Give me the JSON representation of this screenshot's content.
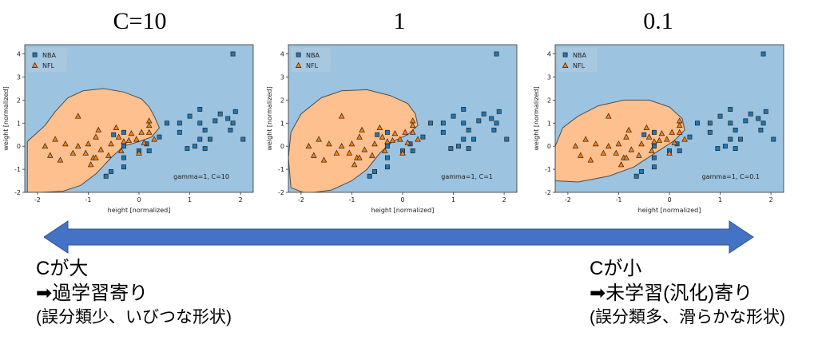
{
  "chart_data": [
    {
      "type": "scatter",
      "title": "C=10",
      "xlabel": "height [normalized]",
      "ylabel": "weight [normalized]",
      "xlim": [
        -2.25,
        2.25
      ],
      "ylim": [
        -2,
        4.4
      ],
      "xticks": [
        -2,
        -1,
        0,
        1,
        2
      ],
      "yticks": [
        -2,
        -1,
        0,
        1,
        2,
        3,
        4
      ],
      "annotation": "gamma=1, C=10",
      "legend": "top-left",
      "region_colors": {
        "NBA": "#9cc3df",
        "NFL": "#fdc08e"
      },
      "nfl_region": [
        [
          -2.2,
          0.2
        ],
        [
          -2.05,
          0.5
        ],
        [
          -1.85,
          0.9
        ],
        [
          -1.65,
          1.5
        ],
        [
          -1.4,
          2.1
        ],
        [
          -1.1,
          2.4
        ],
        [
          -0.7,
          2.5
        ],
        [
          -0.3,
          2.35
        ],
        [
          0.05,
          2.05
        ],
        [
          0.2,
          1.7
        ],
        [
          0.3,
          1.3
        ],
        [
          0.4,
          0.8
        ],
        [
          0.25,
          0.4
        ],
        [
          0.0,
          0.2
        ],
        [
          -0.3,
          0.0
        ],
        [
          -0.55,
          -0.5
        ],
        [
          -0.85,
          -1.2
        ],
        [
          -1.15,
          -1.7
        ],
        [
          -1.5,
          -1.95
        ],
        [
          -1.9,
          -2.0
        ],
        [
          -2.2,
          -2.0
        ]
      ]
    },
    {
      "type": "scatter",
      "title": "1",
      "xlabel": "height [normalized]",
      "ylabel": "weight [normalized]",
      "xlim": [
        -2.25,
        2.25
      ],
      "ylim": [
        -2,
        4.4
      ],
      "xticks": [
        -2,
        -1,
        0,
        1,
        2
      ],
      "yticks": [
        -2,
        -1,
        0,
        1,
        2,
        3,
        4
      ],
      "annotation": "gamma=1, C=1",
      "legend": "top-left",
      "region_colors": {
        "NBA": "#9cc3df",
        "NFL": "#fdc08e"
      },
      "nfl_region": [
        [
          -2.2,
          -1.8
        ],
        [
          -2.25,
          -0.5
        ],
        [
          -2.2,
          0.6
        ],
        [
          -2.0,
          1.4
        ],
        [
          -1.6,
          2.1
        ],
        [
          -1.2,
          2.4
        ],
        [
          -0.7,
          2.45
        ],
        [
          -0.25,
          2.2
        ],
        [
          0.1,
          1.85
        ],
        [
          0.25,
          1.4
        ],
        [
          0.3,
          0.9
        ],
        [
          0.1,
          0.5
        ],
        [
          -0.2,
          0.2
        ],
        [
          -0.45,
          -0.3
        ],
        [
          -0.7,
          -1.0
        ],
        [
          -1.0,
          -1.5
        ],
        [
          -1.4,
          -1.9
        ],
        [
          -1.9,
          -2.05
        ]
      ]
    },
    {
      "type": "scatter",
      "title": "0.1",
      "xlabel": "height [normalized]",
      "ylabel": "weight [normalized]",
      "xlim": [
        -2.25,
        2.25
      ],
      "ylim": [
        -2,
        4.4
      ],
      "xticks": [
        -2,
        -1,
        0,
        1,
        2
      ],
      "yticks": [
        -2,
        -1,
        0,
        1,
        2,
        3,
        4
      ],
      "annotation": "gamma=1, C=0.1",
      "legend": "top-left",
      "region_colors": {
        "NBA": "#9cc3df",
        "NFL": "#fdc08e"
      },
      "nfl_region": [
        [
          -2.25,
          -1.5
        ],
        [
          -2.25,
          0.0
        ],
        [
          -2.1,
          0.8
        ],
        [
          -1.8,
          1.3
        ],
        [
          -1.4,
          1.75
        ],
        [
          -0.9,
          2.0
        ],
        [
          -0.4,
          2.0
        ],
        [
          0.0,
          1.7
        ],
        [
          0.25,
          1.2
        ],
        [
          0.3,
          0.7
        ],
        [
          0.1,
          0.25
        ],
        [
          -0.25,
          -0.25
        ],
        [
          -0.7,
          -0.9
        ],
        [
          -1.2,
          -1.3
        ],
        [
          -1.8,
          -1.55
        ]
      ]
    }
  ],
  "legend": {
    "nba": "NBA",
    "nfl": "NFL"
  },
  "colors": {
    "nba_marker": "#1f77b4",
    "nfl_marker": "#ff7f0e",
    "arrow": "#4472c4"
  },
  "nba_points": [
    [
      1.85,
      4.0
    ],
    [
      0.55,
      1.0
    ],
    [
      0.8,
      0.6
    ],
    [
      0.8,
      1.0
    ],
    [
      1.0,
      1.3
    ],
    [
      1.2,
      1.6
    ],
    [
      1.2,
      1.0
    ],
    [
      1.2,
      0.3
    ],
    [
      1.3,
      0.7
    ],
    [
      1.4,
      0.3
    ],
    [
      1.5,
      1.1
    ],
    [
      1.6,
      1.4
    ],
    [
      1.75,
      1.2
    ],
    [
      1.8,
      0.7
    ],
    [
      1.9,
      1.5
    ],
    [
      1.85,
      1.0
    ],
    [
      2.05,
      0.3
    ],
    [
      1.1,
      0.0
    ],
    [
      1.3,
      -0.1
    ],
    [
      0.95,
      -0.1
    ],
    [
      -0.3,
      0.6
    ],
    [
      -0.5,
      0.5
    ],
    [
      -0.3,
      0.0
    ],
    [
      -0.3,
      -0.5
    ],
    [
      -0.3,
      -0.9
    ],
    [
      -0.55,
      -1.1
    ],
    [
      -0.65,
      -1.3
    ],
    [
      0.0,
      -0.2
    ],
    [
      0.15,
      0.1
    ],
    [
      0.4,
      0.4
    ],
    [
      0.2,
      -0.2
    ]
  ],
  "nfl_points": [
    [
      -1.2,
      1.3
    ],
    [
      -1.85,
      0.0
    ],
    [
      -1.75,
      -0.4
    ],
    [
      -1.65,
      0.3
    ],
    [
      -1.55,
      -0.6
    ],
    [
      -1.45,
      0.1
    ],
    [
      -1.3,
      -0.3
    ],
    [
      -1.2,
      0.0
    ],
    [
      -1.05,
      -0.3
    ],
    [
      -0.95,
      -0.8
    ],
    [
      -0.9,
      -0.5
    ],
    [
      -0.85,
      0.4
    ],
    [
      -0.8,
      0.7
    ],
    [
      -0.75,
      -0.15
    ],
    [
      -0.6,
      -0.4
    ],
    [
      -0.55,
      0.1
    ],
    [
      -0.45,
      0.8
    ],
    [
      -0.4,
      0.4
    ],
    [
      -0.35,
      -0.2
    ],
    [
      -0.3,
      0.2
    ],
    [
      -0.2,
      0.25
    ],
    [
      -0.15,
      0.55
    ],
    [
      -0.05,
      0.3
    ],
    [
      0.0,
      -0.3
    ],
    [
      0.05,
      0.6
    ],
    [
      0.1,
      0.15
    ],
    [
      0.2,
      1.1
    ],
    [
      0.2,
      0.9
    ],
    [
      0.2,
      0.6
    ],
    [
      0.3,
      0.3
    ],
    [
      -0.85,
      -0.5
    ],
    [
      -1.0,
      0.1
    ]
  ],
  "notes": {
    "left": {
      "line1": "Cが大",
      "arrow": "➡",
      "line2": "過学習寄り",
      "line3": "(誤分類少、いびつな形状)"
    },
    "right": {
      "line1": "Cが小",
      "arrow": "➡",
      "line2": "未学習(汎化)寄り",
      "line3": "(誤分類多、滑らかな形状)"
    }
  }
}
